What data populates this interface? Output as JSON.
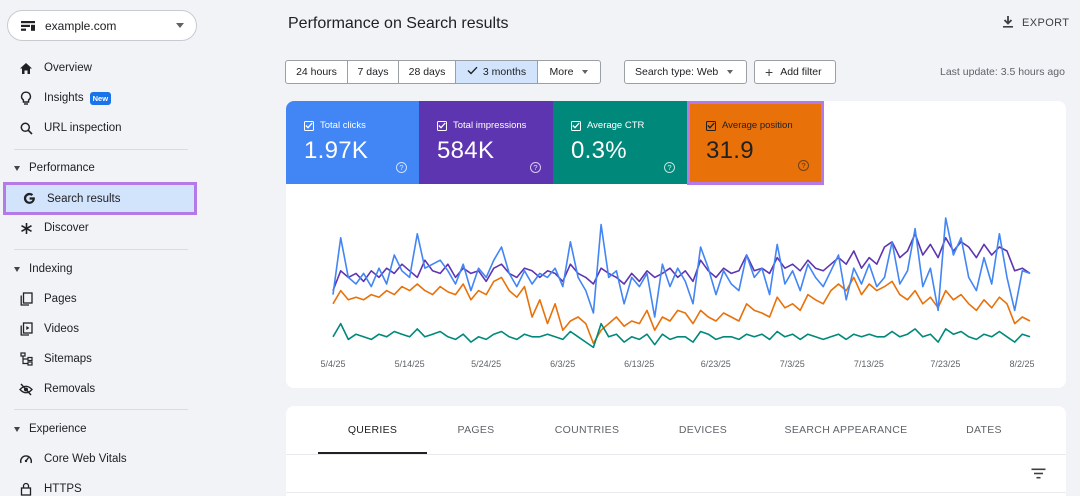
{
  "property": {
    "name": "example.com"
  },
  "sidebar": {
    "items": [
      {
        "id": "overview",
        "label": "Overview",
        "icon": "home-icon"
      },
      {
        "id": "insights",
        "label": "Insights",
        "icon": "lightbulb-icon",
        "badge": "New"
      },
      {
        "id": "url-inspection",
        "label": "URL inspection",
        "icon": "search-icon"
      }
    ],
    "sections": [
      {
        "title": "Performance",
        "items": [
          {
            "id": "search-results",
            "label": "Search results",
            "icon": "google-g-icon",
            "active": true
          },
          {
            "id": "discover",
            "label": "Discover",
            "icon": "asterisk-icon"
          }
        ]
      },
      {
        "title": "Indexing",
        "items": [
          {
            "id": "pages",
            "label": "Pages",
            "icon": "pages-icon"
          },
          {
            "id": "videos",
            "label": "Videos",
            "icon": "video-icon"
          },
          {
            "id": "sitemaps",
            "label": "Sitemaps",
            "icon": "sitemap-icon"
          },
          {
            "id": "removals",
            "label": "Removals",
            "icon": "eye-off-icon"
          }
        ]
      },
      {
        "title": "Experience",
        "items": [
          {
            "id": "core-web-vitals",
            "label": "Core Web Vitals",
            "icon": "gauge-icon"
          },
          {
            "id": "https",
            "label": "HTTPS",
            "icon": "lock-icon"
          }
        ]
      }
    ]
  },
  "header": {
    "title": "Performance on Search results",
    "export_label": "EXPORT"
  },
  "toolbar": {
    "ranges": [
      {
        "label": "24 hours",
        "selected": false
      },
      {
        "label": "7 days",
        "selected": false
      },
      {
        "label": "28 days",
        "selected": false
      },
      {
        "label": "3 months",
        "selected": true
      },
      {
        "label": "More",
        "selected": false,
        "dropdown": true
      }
    ],
    "search_type_label": "Search type: Web",
    "add_filter_label": "Add filter",
    "last_update": "Last update: 3.5 hours ago"
  },
  "metrics": [
    {
      "id": "clicks",
      "label": "Total clicks",
      "value": "1.97K",
      "color": "#4285f4",
      "checked": true
    },
    {
      "id": "impressions",
      "label": "Total impressions",
      "value": "584K",
      "color": "#5e35b1",
      "checked": true
    },
    {
      "id": "ctr",
      "label": "Average CTR",
      "value": "0.3%",
      "color": "#00897b",
      "checked": true
    },
    {
      "id": "position",
      "label": "Average position",
      "value": "31.9",
      "color": "#e8710a",
      "checked": true,
      "highlighted": true
    }
  ],
  "chart_data": {
    "type": "line",
    "x_tick_labels": [
      "5/4/25",
      "5/14/25",
      "5/24/25",
      "6/3/25",
      "6/13/25",
      "6/23/25",
      "7/3/25",
      "7/13/25",
      "7/23/25",
      "8/2/25"
    ],
    "series": [
      {
        "name": "Total clicks",
        "color": "#4285f4",
        "values": [
          0.42,
          0.85,
          0.55,
          0.5,
          0.58,
          0.48,
          0.62,
          0.5,
          0.72,
          0.6,
          0.55,
          0.88,
          0.62,
          0.65,
          0.68,
          0.6,
          0.5,
          0.65,
          0.45,
          0.62,
          0.55,
          0.68,
          0.78,
          0.58,
          0.48,
          0.6,
          0.5,
          0.58,
          0.55,
          0.62,
          0.48,
          0.82,
          0.55,
          0.45,
          0.28,
          0.95,
          0.55,
          0.6,
          0.35,
          0.55,
          0.48,
          0.58,
          0.25,
          0.65,
          0.48,
          0.62,
          0.52,
          0.35,
          0.78,
          0.62,
          0.42,
          0.6,
          0.5,
          0.45,
          0.72,
          0.55,
          0.62,
          0.42,
          0.8,
          0.5,
          0.6,
          0.45,
          0.65,
          0.55,
          0.48,
          0.6,
          0.72,
          0.38,
          0.62,
          0.5,
          0.65,
          0.48,
          0.55,
          0.82,
          0.5,
          0.6,
          0.92,
          0.48,
          0.62,
          0.3,
          1.0,
          0.72,
          0.85,
          0.55,
          0.45,
          0.7,
          0.5,
          0.88,
          0.55,
          0.3,
          0.6,
          0.58
        ]
      },
      {
        "name": "Total impressions",
        "color": "#5e35b1",
        "values": [
          0.45,
          0.6,
          0.55,
          0.58,
          0.52,
          0.6,
          0.55,
          0.62,
          0.58,
          0.65,
          0.6,
          0.55,
          0.68,
          0.6,
          0.58,
          0.65,
          0.55,
          0.62,
          0.58,
          0.6,
          0.52,
          0.62,
          0.65,
          0.58,
          0.55,
          0.62,
          0.6,
          0.55,
          0.6,
          0.58,
          0.52,
          0.65,
          0.58,
          0.55,
          0.5,
          0.62,
          0.58,
          0.55,
          0.5,
          0.58,
          0.52,
          0.6,
          0.55,
          0.58,
          0.62,
          0.55,
          0.6,
          0.52,
          0.68,
          0.6,
          0.55,
          0.62,
          0.58,
          0.6,
          0.72,
          0.6,
          0.62,
          0.58,
          0.7,
          0.62,
          0.65,
          0.6,
          0.68,
          0.62,
          0.6,
          0.65,
          0.7,
          0.65,
          0.75,
          0.62,
          0.7,
          0.65,
          0.78,
          0.82,
          0.7,
          0.75,
          0.88,
          0.72,
          0.8,
          0.7,
          0.85,
          0.75,
          0.82,
          0.78,
          0.7,
          0.8,
          0.72,
          0.78,
          0.75,
          0.6,
          0.62,
          0.58
        ]
      },
      {
        "name": "Average CTR",
        "color": "#00897b",
        "values": [
          0.1,
          0.2,
          0.08,
          0.12,
          0.1,
          0.08,
          0.12,
          0.1,
          0.14,
          0.12,
          0.1,
          0.16,
          0.1,
          0.12,
          0.14,
          0.1,
          0.08,
          0.12,
          0.06,
          0.1,
          0.08,
          0.12,
          0.14,
          0.1,
          0.08,
          0.12,
          0.1,
          0.1,
          0.12,
          0.1,
          0.08,
          0.14,
          0.1,
          0.06,
          0.02,
          0.2,
          0.1,
          0.12,
          0.06,
          0.1,
          0.08,
          0.12,
          0.04,
          0.12,
          0.08,
          0.1,
          0.1,
          0.06,
          0.14,
          0.12,
          0.08,
          0.1,
          0.1,
          0.08,
          0.12,
          0.1,
          0.12,
          0.08,
          0.14,
          0.1,
          0.12,
          0.08,
          0.12,
          0.1,
          0.08,
          0.1,
          0.12,
          0.08,
          0.12,
          0.1,
          0.12,
          0.1,
          0.1,
          0.14,
          0.1,
          0.12,
          0.16,
          0.1,
          0.12,
          0.06,
          0.16,
          0.12,
          0.14,
          0.1,
          0.08,
          0.12,
          0.1,
          0.14,
          0.1,
          0.06,
          0.12,
          0.1
        ]
      },
      {
        "name": "Average position",
        "color": "#e8710a",
        "values": [
          0.35,
          0.45,
          0.38,
          0.4,
          0.38,
          0.42,
          0.4,
          0.45,
          0.42,
          0.48,
          0.45,
          0.5,
          0.45,
          0.42,
          0.48,
          0.44,
          0.42,
          0.5,
          0.38,
          0.45,
          0.42,
          0.52,
          0.55,
          0.45,
          0.4,
          0.48,
          0.25,
          0.38,
          0.2,
          0.35,
          0.15,
          0.22,
          0.25,
          0.2,
          0.05,
          0.15,
          0.2,
          0.25,
          0.18,
          0.22,
          0.2,
          0.3,
          0.15,
          0.25,
          0.22,
          0.3,
          0.28,
          0.2,
          0.3,
          0.25,
          0.22,
          0.28,
          0.25,
          0.22,
          0.35,
          0.3,
          0.28,
          0.25,
          0.4,
          0.32,
          0.35,
          0.3,
          0.42,
          0.38,
          0.35,
          0.45,
          0.5,
          0.45,
          0.55,
          0.42,
          0.5,
          0.45,
          0.48,
          0.52,
          0.42,
          0.38,
          0.45,
          0.35,
          0.4,
          0.32,
          0.45,
          0.38,
          0.42,
          0.35,
          0.3,
          0.38,
          0.32,
          0.4,
          0.35,
          0.2,
          0.25,
          0.22
        ]
      }
    ]
  },
  "tabs": [
    {
      "label": "QUERIES",
      "selected": true
    },
    {
      "label": "PAGES",
      "selected": false
    },
    {
      "label": "COUNTRIES",
      "selected": false
    },
    {
      "label": "DEVICES",
      "selected": false
    },
    {
      "label": "SEARCH APPEARANCE",
      "selected": false
    },
    {
      "label": "DATES",
      "selected": false
    }
  ]
}
